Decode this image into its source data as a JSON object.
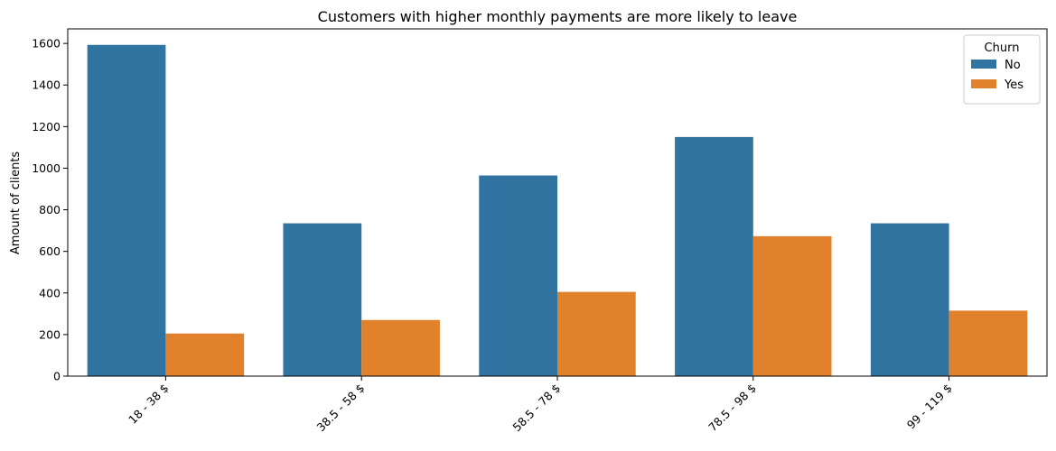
{
  "chart_data": {
    "type": "bar",
    "title": "Customers with higher monthly payments are more likely to leave",
    "xlabel": "",
    "ylabel": "Amount of clients",
    "categories": [
      "18 - 38 $",
      "38.5 - 58 $",
      "58.5 - 78 $",
      "78.5 - 98 $",
      "99 - 119 $"
    ],
    "series": [
      {
        "name": "No",
        "color": "#3274a1",
        "values": [
          1593,
          735,
          965,
          1150,
          735
        ]
      },
      {
        "name": "Yes",
        "color": "#e1812c",
        "values": [
          205,
          270,
          405,
          673,
          315
        ]
      }
    ],
    "ylim": [
      0,
      1670
    ],
    "yticks": [
      0,
      200,
      400,
      600,
      800,
      1000,
      1200,
      1400,
      1600
    ],
    "legend": {
      "title": "Churn",
      "position": "top-right"
    },
    "grid": false
  }
}
